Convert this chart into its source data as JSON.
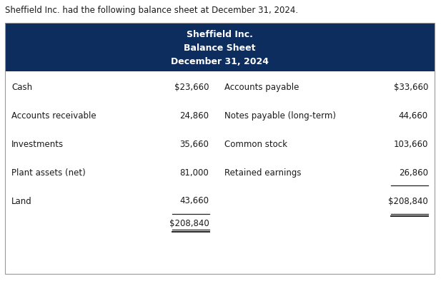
{
  "intro_text": "Sheffield Inc. had the following balance sheet at December 31, 2024.",
  "header_line1": "Sheffield Inc.",
  "header_line2": "Balance Sheet",
  "header_line3": "December 31, 2024",
  "header_bg": "#0d2d5e",
  "header_text_color": "#ffffff",
  "left_items": [
    [
      "Cash",
      "$23,660"
    ],
    [
      "Accounts receivable",
      "24,860"
    ],
    [
      "Investments",
      "35,660"
    ],
    [
      "Plant assets (net)",
      "81,000"
    ],
    [
      "Land",
      "43,660"
    ]
  ],
  "left_total": "$208,840",
  "right_items": [
    [
      "Accounts payable",
      "$33,660"
    ],
    [
      "Notes payable (long-term)",
      "44,660"
    ],
    [
      "Common stock",
      "103,660"
    ],
    [
      "Retained earnings",
      "26,860"
    ]
  ],
  "right_total": "$208,840",
  "text_color": "#1a1a1a",
  "font_size_intro": 8.5,
  "font_size_header": 9.0,
  "font_size_body": 8.5
}
